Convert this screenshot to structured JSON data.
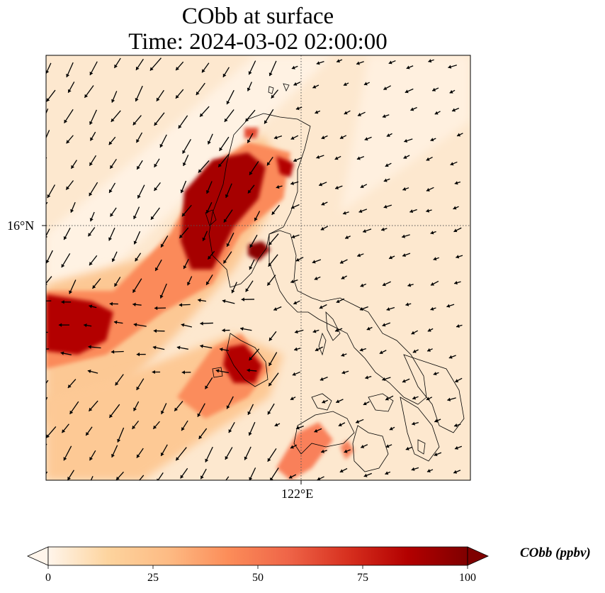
{
  "title": {
    "line1": "CObb at surface",
    "line2": "Time: 2024-03-02 02:00:00"
  },
  "map": {
    "latitude_label": "16°N",
    "longitude_label": "122°E",
    "gridline_style": "dotted",
    "wind_vectors": "black arrows"
  },
  "colorbar": {
    "label": "CObb (ppbv)",
    "min": 0,
    "max": 100,
    "ticks": [
      "0",
      "25",
      "50",
      "75",
      "100"
    ],
    "colormap": [
      "#fff5eb",
      "#fdd49e",
      "#fdbb84",
      "#fc8d59",
      "#ef6548",
      "#d7301f",
      "#b30000",
      "#7f0000"
    ],
    "extend": "both"
  }
}
